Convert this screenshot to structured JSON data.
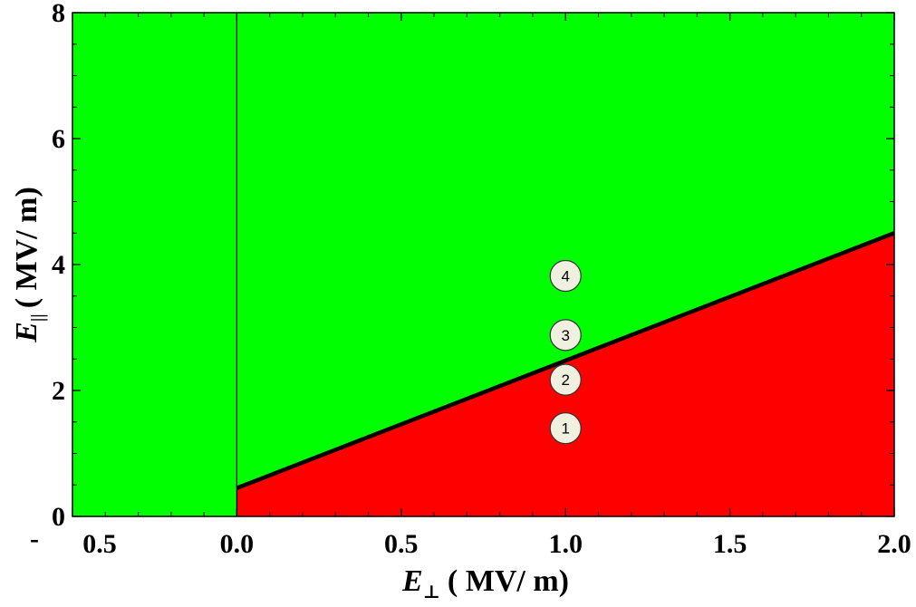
{
  "chart_data": {
    "type": "area",
    "xlim": [
      -0.5,
      2.0
    ],
    "ylim": [
      0,
      8
    ],
    "x_ticks": [
      {
        "value": -0.5,
        "label": "0.5",
        "prefix": "-"
      },
      {
        "value": 0.0,
        "label": "0.0"
      },
      {
        "value": 0.5,
        "label": "0.5"
      },
      {
        "value": 1.0,
        "label": "1.0"
      },
      {
        "value": 1.5,
        "label": "1.5"
      },
      {
        "value": 2.0,
        "label": "2.0"
      }
    ],
    "y_ticks": [
      {
        "value": 0,
        "label": "0"
      },
      {
        "value": 2,
        "label": "2"
      },
      {
        "value": 4,
        "label": "4"
      },
      {
        "value": 6,
        "label": "6"
      },
      {
        "value": 8,
        "label": "8"
      }
    ],
    "xlabel": {
      "symbol": "E",
      "subscript": "⊥",
      "unit": "( MV/ m)"
    },
    "ylabel": {
      "symbol": "E",
      "subscript": "||",
      "unit": "( MV/ m)"
    },
    "regions": [
      {
        "color": "#00ff00",
        "description": "above boundary"
      },
      {
        "color": "#ff0000",
        "description": "below boundary, x ≥ 0"
      }
    ],
    "boundary_line": {
      "x": [
        0.0,
        2.0
      ],
      "y": [
        0.45,
        4.5
      ],
      "color": "#000000"
    },
    "vertical_line": {
      "x": 0.0,
      "color": "#000000"
    },
    "points": [
      {
        "label": "1",
        "x": 1.0,
        "y": 1.4
      },
      {
        "label": "2",
        "x": 1.0,
        "y": 2.17
      },
      {
        "label": "3",
        "x": 1.0,
        "y": 2.88
      },
      {
        "label": "4",
        "x": 1.0,
        "y": 3.82
      }
    ],
    "grid": false,
    "colors": {
      "green": "#00ff00",
      "red": "#ff0000",
      "marker_fill": "#f0f0e0"
    }
  }
}
